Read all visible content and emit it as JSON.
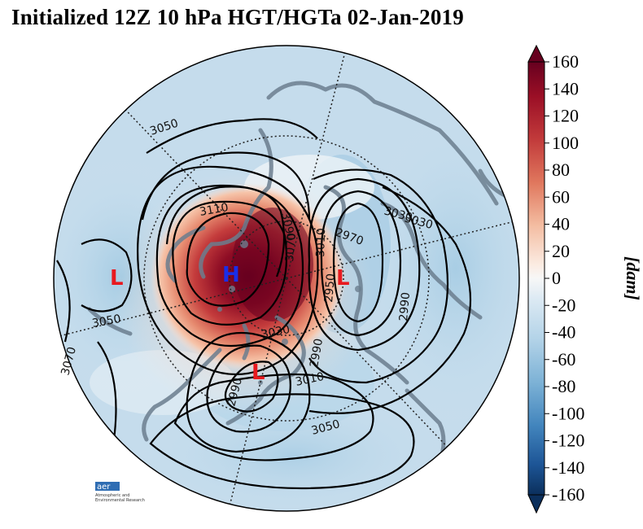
{
  "title": "Initialized 12Z 10 hPa HGT/HGTa 02-Jan-2019",
  "colorbar": {
    "ticks": [
      "160",
      "140",
      "120",
      "100",
      "80",
      "60",
      "40",
      "20",
      "0",
      "-20",
      "-40",
      "-60",
      "-80",
      "-100",
      "-120",
      "-140",
      "-160"
    ],
    "unit": "[dam]",
    "colors": [
      "#67001f",
      "#9b0f26",
      "#c23b3b",
      "#d6604d",
      "#e9957b",
      "#f4bea3",
      "#f9dccb",
      "#fbece3",
      "#eaf1f6",
      "#d6e6f1",
      "#bcd8ea",
      "#9cc7e1",
      "#74acd2",
      "#4a8cbf",
      "#2d6aa8",
      "#1a4d85",
      "#0b2f5c"
    ]
  },
  "contour_labels": [
    {
      "text": "3050"
    },
    {
      "text": "3110"
    },
    {
      "text": "3090"
    },
    {
      "text": "3070"
    },
    {
      "text": "3010"
    },
    {
      "text": "2950"
    },
    {
      "text": "3030"
    },
    {
      "text": "2970"
    },
    {
      "text": "2990"
    },
    {
      "text": "3050"
    },
    {
      "text": "3070"
    },
    {
      "text": "3030"
    },
    {
      "text": "2990"
    },
    {
      "text": "2990"
    },
    {
      "text": "3010"
    },
    {
      "text": "3050"
    },
    {
      "text": "3030"
    }
  ],
  "systems": [
    {
      "label": "L",
      "color": "#e8191f"
    },
    {
      "label": "H",
      "color": "#1a2ee8"
    },
    {
      "label": "L",
      "color": "#e8191f"
    },
    {
      "label": "L",
      "color": "#e8191f"
    }
  ],
  "logo": {
    "text": "aer",
    "tag1": "Atmospheric and",
    "tag2": "Environmental Research"
  }
}
